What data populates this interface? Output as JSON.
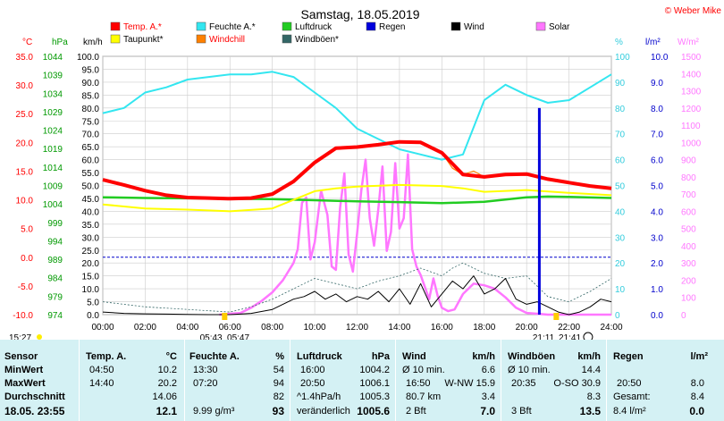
{
  "chart_data": {
    "type": "line",
    "title": "Samstag, 18.05.2019",
    "copyright": "© Weber Mike",
    "legend": [
      {
        "label": "Temp. A.*",
        "color": "#ff0000"
      },
      {
        "label": "Feuchte A.*",
        "color": "#33e6f0"
      },
      {
        "label": "Luftdruck",
        "color": "#22cc22"
      },
      {
        "label": "Regen",
        "color": "#0000dd"
      },
      {
        "label": "Wind",
        "color": "#000000"
      },
      {
        "label": "Solar",
        "color": "#ff77ff"
      },
      {
        "label": "Taupunkt*",
        "color": "#ffff00"
      },
      {
        "label": "Windchill",
        "color": "#ff8000"
      },
      {
        "label": "Windböen*",
        "color": "#336666"
      }
    ],
    "axes": {
      "temp": {
        "unit": "°C",
        "color": "#ff0000",
        "ticks": [
          "35.0",
          "30.0",
          "25.0",
          "20.0",
          "15.0",
          "10.0",
          "5.0",
          "0.0",
          "-5.0",
          "-10.0"
        ]
      },
      "pressure": {
        "unit": "hPa",
        "color": "#22aa22",
        "ticks": [
          "1044",
          "1039",
          "1034",
          "1029",
          "1024",
          "1019",
          "1014",
          "1009",
          "1004",
          "999",
          "994",
          "989",
          "984",
          "979",
          "974"
        ]
      },
      "wind": {
        "unit": "km/h",
        "color": "#000000",
        "ticks": [
          "100.0",
          "95.0",
          "90.0",
          "85.0",
          "80.0",
          "75.0",
          "70.0",
          "65.0",
          "60.0",
          "55.0",
          "50.0",
          "45.0",
          "40.0",
          "35.0",
          "30.0",
          "25.0",
          "20.0",
          "15.0",
          "10.0",
          "5.0",
          "0.0"
        ]
      },
      "humidity": {
        "unit": "%",
        "color": "#33ccdd",
        "ticks": [
          "100",
          "90",
          "80",
          "70",
          "60",
          "50",
          "40",
          "30",
          "20",
          "10",
          "0"
        ]
      },
      "rain": {
        "unit": "l/m²",
        "color": "#0000cc",
        "ticks": [
          "10.0",
          "9.0",
          "8.0",
          "7.0",
          "6.0",
          "5.0",
          "4.0",
          "3.0",
          "2.0",
          "1.0",
          "0.0"
        ]
      },
      "solar": {
        "unit": "W/m²",
        "color": "#ff77ff",
        "ticks": [
          "1500",
          "1400",
          "1300",
          "1200",
          "1100",
          "1000",
          "900",
          "800",
          "700",
          "600",
          "500",
          "400",
          "300",
          "200",
          "100",
          "0"
        ]
      }
    },
    "x_ticks": [
      "00:00",
      "02:00",
      "04:00",
      "06:00",
      "08:00",
      "10:00",
      "12:00",
      "14:00",
      "16:00",
      "18:00",
      "20:00",
      "22:00",
      "24:00"
    ],
    "series": [
      {
        "name": "Temp. A.*",
        "color": "#ff0000",
        "axis": "temp",
        "x": [
          0,
          1,
          2,
          3,
          4,
          5,
          6,
          7,
          8,
          9,
          10,
          11,
          12,
          13,
          14,
          15,
          16,
          17,
          18,
          19,
          20,
          21,
          22,
          23,
          24
        ],
        "values": [
          13.5,
          12.6,
          11.6,
          10.8,
          10.4,
          10.3,
          10.2,
          10.3,
          11.0,
          13.2,
          16.5,
          19.0,
          19.2,
          19.6,
          20.1,
          20.0,
          18.2,
          14.4,
          14.0,
          14.4,
          14.5,
          13.6,
          13.0,
          12.4,
          12.0
        ]
      },
      {
        "name": "Feuchte A.*",
        "color": "#33e6f0",
        "axis": "humidity",
        "x": [
          0,
          1,
          2,
          3,
          4,
          5,
          6,
          7,
          8,
          9,
          10,
          11,
          12,
          13,
          14,
          15,
          16,
          17,
          18,
          19,
          20,
          21,
          22,
          23,
          24
        ],
        "values": [
          78,
          80,
          86,
          88,
          91,
          92,
          93,
          93,
          94,
          92,
          86,
          80,
          72,
          68,
          64,
          62,
          60,
          62,
          83,
          89,
          85,
          82,
          83,
          88,
          93
        ]
      },
      {
        "name": "Taupunkt*",
        "color": "#ffff00",
        "axis": "temp",
        "x": [
          0,
          2,
          4,
          6,
          8,
          9,
          10,
          11,
          12,
          14,
          16,
          17,
          18,
          20,
          22,
          24
        ],
        "values": [
          9.2,
          8.5,
          8.3,
          8.0,
          8.5,
          10.0,
          11.5,
          12.0,
          12.3,
          12.6,
          12.4,
          12.0,
          11.4,
          11.7,
          11.2,
          10.8
        ]
      },
      {
        "name": "Luftdruck",
        "color": "#22cc22",
        "axis": "pressure",
        "x": [
          0,
          2,
          4,
          6,
          8,
          10,
          12,
          14,
          16,
          18,
          20,
          21,
          22,
          24
        ],
        "values": [
          1005.8,
          1005.6,
          1005.5,
          1005.4,
          1005.3,
          1005.0,
          1004.7,
          1004.5,
          1004.2,
          1004.6,
          1005.8,
          1006.0,
          1005.9,
          1005.6
        ]
      },
      {
        "name": "Windchill",
        "color": "#ff8000",
        "axis": "temp",
        "x": [
          14,
          15,
          16,
          16.5,
          17,
          17.5,
          18
        ],
        "values": [
          20.1,
          20.0,
          18.2,
          15.5,
          14.4,
          15.0,
          14.0
        ]
      },
      {
        "name": "Wind",
        "color": "#000000",
        "axis": "wind",
        "x": [
          0,
          1,
          2,
          3,
          4,
          5,
          6,
          7,
          8,
          8.5,
          9,
          9.5,
          10,
          10.5,
          11,
          11.5,
          12,
          12.5,
          13,
          13.5,
          14,
          14.5,
          15,
          15.5,
          16,
          16.5,
          17,
          17.5,
          18,
          18.5,
          19,
          19.5,
          20,
          20.5,
          21,
          21.5,
          22,
          22.5,
          23,
          23.5,
          24
        ],
        "values": [
          1,
          0.5,
          0.3,
          0.2,
          0.1,
          0,
          0,
          0.5,
          2,
          4,
          6,
          7,
          9,
          6,
          8,
          5,
          7,
          6,
          9,
          5,
          10,
          4,
          12,
          3,
          8,
          13,
          10,
          15,
          8,
          10,
          14,
          6,
          4,
          5,
          3,
          1,
          0,
          1,
          3,
          6,
          5
        ]
      },
      {
        "name": "Windböen*",
        "color": "#336666",
        "axis": "wind",
        "x": [
          0,
          2,
          4,
          6,
          7,
          8,
          9,
          10,
          11,
          12,
          13,
          14,
          15,
          16,
          16.5,
          17,
          18,
          19,
          20,
          20.5,
          21,
          22,
          23,
          24
        ],
        "values": [
          5,
          3,
          2,
          1,
          3,
          6,
          10,
          14,
          12,
          10,
          13,
          15,
          18,
          15,
          18,
          20,
          16,
          14,
          15,
          11,
          7,
          5,
          9,
          14
        ]
      },
      {
        "name": "Solar",
        "color": "#ff77ff",
        "axis": "solar",
        "x": [
          5.5,
          6.5,
          7,
          7.5,
          8,
          8.5,
          9,
          9.2,
          9.4,
          9.6,
          9.8,
          10,
          10.3,
          10.6,
          10.8,
          11,
          11.2,
          11.4,
          11.6,
          11.8,
          12,
          12.2,
          12.4,
          12.6,
          12.8,
          13,
          13.2,
          13.4,
          13.6,
          13.8,
          14,
          14.2,
          14.4,
          14.6,
          14.8,
          15,
          15.2,
          15.4,
          15.6,
          15.8,
          16,
          16.3,
          16.6,
          17,
          17.5,
          18,
          18.5,
          19,
          19.5,
          20,
          20.5,
          21,
          22,
          23,
          24
        ],
        "values": [
          0,
          10,
          40,
          80,
          130,
          200,
          300,
          380,
          650,
          680,
          320,
          420,
          720,
          580,
          280,
          260,
          620,
          820,
          350,
          250,
          470,
          720,
          900,
          560,
          400,
          610,
          860,
          370,
          480,
          880,
          500,
          560,
          930,
          380,
          280,
          230,
          160,
          90,
          210,
          110,
          40,
          20,
          30,
          120,
          180,
          170,
          150,
          100,
          40,
          10,
          5,
          0,
          0,
          0,
          0
        ]
      },
      {
        "name": "Regen",
        "color": "#0000dd",
        "axis": "rain",
        "x": [
          20.6
        ],
        "values": [
          8.0
        ]
      }
    ],
    "sun_markers": [
      "05:43",
      "05:47",
      "21:11",
      "21:41"
    ],
    "time_now": "15:27"
  },
  "stats": {
    "headers": {
      "sensor": "Sensor",
      "temp": "Temp. A.",
      "temp_unit": "°C",
      "hum": "Feuchte A.",
      "hum_unit": "%",
      "press": "Luftdruck",
      "press_unit": "hPa",
      "wind": "Wind",
      "wind_unit": "km/h",
      "gust": "Windböen",
      "gust_unit": "km/h",
      "rain": "Regen",
      "rain_unit": "l/m²"
    },
    "rows": {
      "min_label": "MinWert",
      "max_label": "MaxWert",
      "avg_label": "Durchschnitt",
      "date_label": "18.05. 23:55"
    },
    "temp": {
      "min_time": "04:50",
      "min": "10.2",
      "max_time": "14:40",
      "max": "20.2",
      "avg": "14.06",
      "current": "12.1"
    },
    "hum": {
      "min_time": "13:30",
      "min": "54",
      "max_time": "07:20",
      "max": "94",
      "avg": "82",
      "abs": "9.99 g/m³",
      "current": "93"
    },
    "press": {
      "min_time": "16:00",
      "min": "1004.2",
      "max_time": "20:50",
      "max": "1006.1",
      "trend_label": "^1.4hPa/h",
      "avg": "1005.3",
      "tendency": "veränderlich",
      "current": "1005.6"
    },
    "wind": {
      "min_label": "Ø 10 min.",
      "min": "6.6",
      "max_time": "16:50",
      "max": "W-NW 15.9",
      "dist": "80.7 km",
      "avg": "3.4",
      "bft": "2 Bft",
      "current": "7.0"
    },
    "gust": {
      "min_label": "Ø 10 min.",
      "min": "14.4",
      "max_time": "20:35",
      "max": "O-SO 30.9",
      "avg": "8.3",
      "bft": "3 Bft",
      "current": "13.5"
    },
    "rain": {
      "max_time": "20:50",
      "max": "8.0",
      "total_label": "Gesamt:",
      "total": "8.4",
      "total_unit": "8.4 l/m²",
      "current": "0.0"
    }
  }
}
